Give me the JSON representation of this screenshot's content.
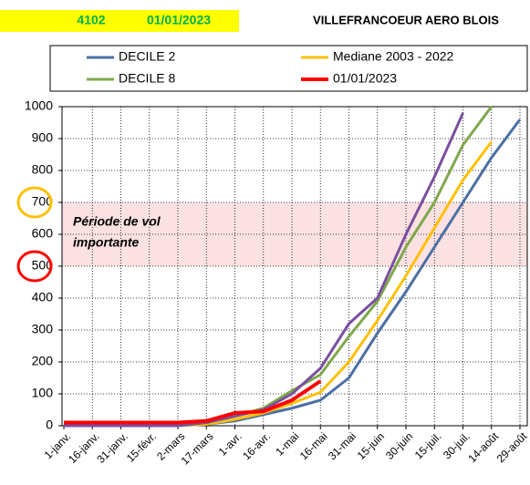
{
  "chart_data": {
    "type": "line",
    "header_code": "4102",
    "header_date": "01/01/2023",
    "title": "VILLEFRANCOEUR AERO BLOIS",
    "categories": [
      "1-janv.",
      "16-janv.",
      "31-janv.",
      "15-févr.",
      "2-mars",
      "17-mars",
      "1-avr.",
      "16-avr.",
      "1-mai",
      "16-mai",
      "31-mai",
      "15-juin",
      "30-juin",
      "15-juil.",
      "30-juil.",
      "14-août",
      "29-août"
    ],
    "series": [
      {
        "name": "DECILE 2",
        "color": "#4a6fa5",
        "values": [
          0,
          0,
          0,
          0,
          0,
          5,
          15,
          35,
          55,
          80,
          150,
          290,
          420,
          560,
          700,
          840,
          960
        ]
      },
      {
        "name": "Mediane 2003 - 2022",
        "color": "#ffc000",
        "values": [
          0,
          0,
          0,
          0,
          0,
          5,
          20,
          40,
          70,
          105,
          200,
          330,
          470,
          620,
          770,
          890,
          null
        ]
      },
      {
        "name": "DECILE 8",
        "color": "#7fa84a",
        "values": [
          0,
          0,
          0,
          0,
          0,
          10,
          30,
          55,
          110,
          160,
          280,
          390,
          560,
          700,
          880,
          1000,
          null
        ]
      },
      {
        "color": "#7a4fa0",
        "values": [
          0,
          0,
          0,
          0,
          0,
          10,
          30,
          50,
          100,
          180,
          320,
          400,
          600,
          780,
          980,
          null,
          null
        ]
      },
      {
        "name": "01/01/2023",
        "color": "#ff0000",
        "values": [
          10,
          10,
          10,
          10,
          10,
          15,
          40,
          45,
          80,
          140,
          null,
          null,
          null,
          null,
          null,
          null,
          null
        ]
      }
    ],
    "band": [
      500,
      700
    ],
    "band_color": "#fbe1e1",
    "annotation": [
      "Période de vol",
      "importante"
    ],
    "ylim": [
      0,
      1000
    ],
    "yticks": [
      0,
      100,
      200,
      300,
      400,
      500,
      600,
      700,
      800,
      900,
      1000
    ],
    "grid": true
  }
}
